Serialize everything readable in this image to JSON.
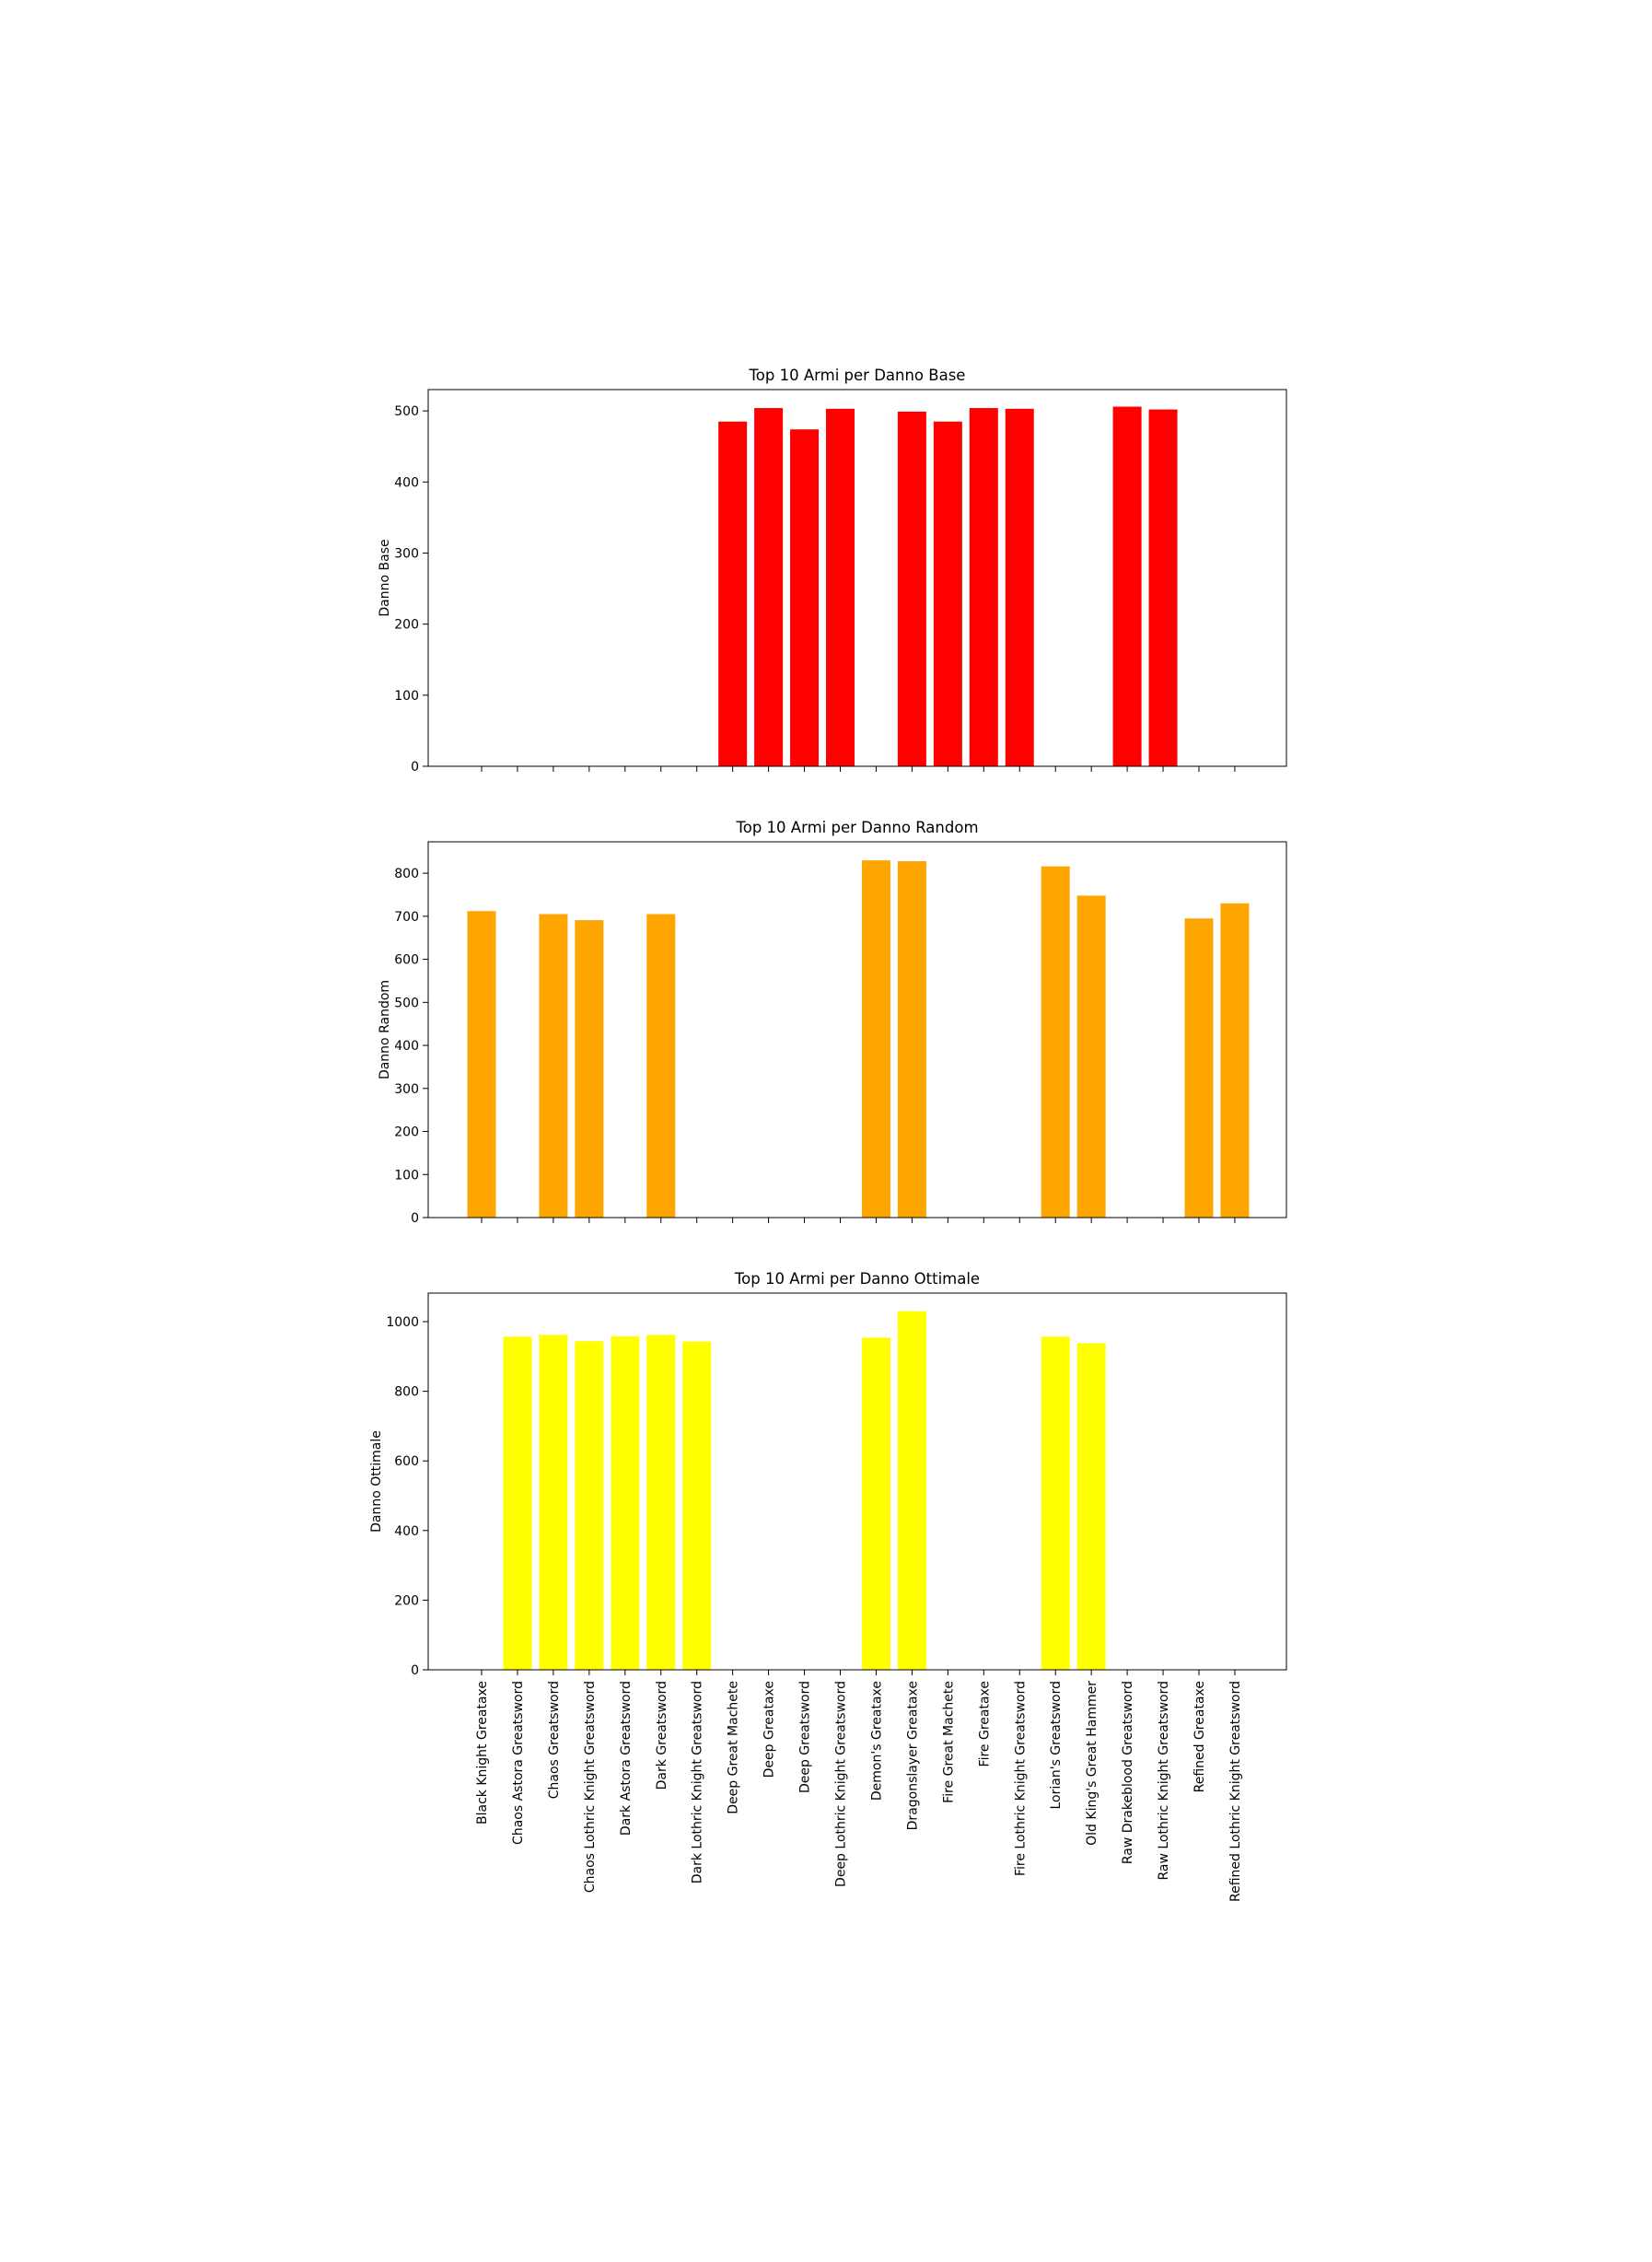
{
  "chart_data": [
    {
      "type": "bar",
      "title": "Top 10 Armi per Danno Base",
      "xlabel": "",
      "ylabel": "Danno Base",
      "ylim": [
        0,
        530
      ],
      "yticks": [
        0,
        100,
        200,
        300,
        400,
        500
      ],
      "color": "#ff0000",
      "categories": [
        "Black Knight Greataxe",
        "Chaos Astora Greatsword",
        "Chaos Greatsword",
        "Chaos Lothric Knight Greatsword",
        "Dark Astora Greatsword",
        "Dark Greatsword",
        "Dark Lothric Knight Greatsword",
        "Deep Great Machete",
        "Deep Greataxe",
        "Deep Greatsword",
        "Deep Lothric Knight Greatsword",
        "Demon's Greataxe",
        "Dragonslayer Greataxe",
        "Fire Great Machete",
        "Fire Greataxe",
        "Fire Lothric Knight Greatsword",
        "Lorian's Greatsword",
        "Old King's Great Hammer",
        "Raw Drakeblood Greatsword",
        "Raw Lothric Knight Greatsword",
        "Refined Greataxe",
        "Refined Lothric Knight Greatsword"
      ],
      "values": [
        null,
        null,
        null,
        null,
        null,
        null,
        null,
        485,
        504,
        474,
        503,
        null,
        499,
        485,
        504,
        503,
        null,
        null,
        506,
        502,
        null,
        null
      ]
    },
    {
      "type": "bar",
      "title": "Top 10 Armi per Danno Random",
      "xlabel": "",
      "ylabel": "Danno Random",
      "ylim": [
        0,
        873
      ],
      "yticks": [
        0,
        100,
        200,
        300,
        400,
        500,
        600,
        700,
        800
      ],
      "color": "#ffa500",
      "categories": [
        "Black Knight Greataxe",
        "Chaos Astora Greatsword",
        "Chaos Greatsword",
        "Chaos Lothric Knight Greatsword",
        "Dark Astora Greatsword",
        "Dark Greatsword",
        "Dark Lothric Knight Greatsword",
        "Deep Great Machete",
        "Deep Greataxe",
        "Deep Greatsword",
        "Deep Lothric Knight Greatsword",
        "Demon's Greataxe",
        "Dragonslayer Greataxe",
        "Fire Great Machete",
        "Fire Greataxe",
        "Fire Lothric Knight Greatsword",
        "Lorian's Greatsword",
        "Old King's Great Hammer",
        "Raw Drakeblood Greatsword",
        "Raw Lothric Knight Greatsword",
        "Refined Greataxe",
        "Refined Lothric Knight Greatsword"
      ],
      "values": [
        712,
        null,
        705,
        691,
        null,
        705,
        null,
        null,
        null,
        null,
        null,
        830,
        828,
        null,
        null,
        null,
        816,
        748,
        null,
        null,
        695,
        730
      ]
    },
    {
      "type": "bar",
      "title": "Top 10 Armi per Danno Ottimale",
      "xlabel": "",
      "ylabel": "Danno Ottimale",
      "ylim": [
        0,
        1082
      ],
      "yticks": [
        0,
        200,
        400,
        600,
        800,
        1000
      ],
      "color": "#ffff00",
      "categories": [
        "Black Knight Greataxe",
        "Chaos Astora Greatsword",
        "Chaos Greatsword",
        "Chaos Lothric Knight Greatsword",
        "Dark Astora Greatsword",
        "Dark Greatsword",
        "Dark Lothric Knight Greatsword",
        "Deep Great Machete",
        "Deep Greataxe",
        "Deep Greatsword",
        "Deep Lothric Knight Greatsword",
        "Demon's Greataxe",
        "Dragonslayer Greataxe",
        "Fire Great Machete",
        "Fire Greataxe",
        "Fire Lothric Knight Greatsword",
        "Lorian's Greatsword",
        "Old King's Great Hammer",
        "Raw Drakeblood Greatsword",
        "Raw Lothric Knight Greatsword",
        "Refined Greataxe",
        "Refined Lothric Knight Greatsword"
      ],
      "values": [
        null,
        957,
        962,
        944,
        958,
        962,
        943,
        null,
        null,
        null,
        null,
        954,
        1030,
        null,
        null,
        null,
        957,
        938,
        null,
        null,
        null,
        null
      ]
    }
  ]
}
